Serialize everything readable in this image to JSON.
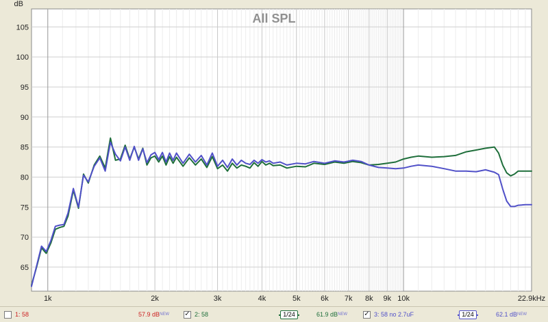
{
  "chart_data": {
    "type": "line",
    "title": "All SPL",
    "ylabel": "dB",
    "xscale": "log",
    "xlim": [
      900,
      22900
    ],
    "ylim": [
      61,
      108
    ],
    "yticks": [
      65,
      70,
      75,
      80,
      85,
      90,
      95,
      100,
      105
    ],
    "xtick_values": [
      1000,
      2000,
      3000,
      4000,
      5000,
      6000,
      7000,
      8000,
      9000,
      10000,
      22900
    ],
    "xtick_labels": [
      "1k",
      "2k",
      "3k",
      "4k",
      "5k",
      "6k",
      "7k",
      "8k",
      "9k",
      "10k",
      "22.9kHz"
    ],
    "grid": true,
    "series": [
      {
        "name": "2: 58",
        "color": "#1e6e3a",
        "x": [
          900,
          930,
          960,
          990,
          1020,
          1050,
          1080,
          1110,
          1140,
          1180,
          1220,
          1260,
          1300,
          1350,
          1400,
          1450,
          1500,
          1550,
          1600,
          1650,
          1700,
          1750,
          1800,
          1850,
          1900,
          1950,
          2000,
          2050,
          2100,
          2150,
          2200,
          2250,
          2300,
          2400,
          2500,
          2600,
          2700,
          2800,
          2900,
          3000,
          3100,
          3200,
          3300,
          3400,
          3500,
          3600,
          3700,
          3800,
          3900,
          4000,
          4100,
          4200,
          4300,
          4500,
          4700,
          5000,
          5300,
          5600,
          6000,
          6400,
          6800,
          7200,
          7600,
          8000,
          8500,
          9000,
          9500,
          10000,
          10500,
          11000,
          12000,
          13000,
          14000,
          15000,
          16000,
          17000,
          18000,
          18500,
          19000,
          19500,
          20000,
          20500,
          21000,
          22000,
          22900
        ],
        "y": [
          62,
          65,
          68.2,
          67.3,
          69,
          71.3,
          71.6,
          71.8,
          73.5,
          77.8,
          74.8,
          80.5,
          79,
          82,
          83.5,
          81.5,
          86.5,
          82.8,
          83,
          85.3,
          83,
          85,
          83,
          84.8,
          82,
          83.2,
          83.5,
          82.5,
          83.5,
          82,
          83.4,
          82.3,
          83.3,
          81.8,
          83.2,
          82,
          83,
          81.6,
          83.4,
          81.4,
          82,
          81,
          82.3,
          81.5,
          82,
          81.8,
          81.5,
          82.4,
          81.8,
          82.6,
          82,
          82.3,
          81.9,
          82,
          81.5,
          81.8,
          81.7,
          82.3,
          82.1,
          82.5,
          82.3,
          82.6,
          82.4,
          82,
          82.1,
          82.3,
          82.5,
          83,
          83.3,
          83.5,
          83.3,
          83.4,
          83.6,
          84.2,
          84.5,
          84.8,
          85,
          84,
          82,
          80.7,
          80.2,
          80.5,
          81,
          81,
          81
        ]
      },
      {
        "name": "3: 58 no 2.7uF",
        "color": "#5050c8",
        "x": [
          900,
          930,
          960,
          990,
          1020,
          1050,
          1080,
          1110,
          1140,
          1180,
          1220,
          1260,
          1300,
          1350,
          1400,
          1450,
          1500,
          1550,
          1600,
          1650,
          1700,
          1750,
          1800,
          1850,
          1900,
          1950,
          2000,
          2050,
          2100,
          2150,
          2200,
          2250,
          2300,
          2400,
          2500,
          2600,
          2700,
          2800,
          2900,
          3000,
          3100,
          3200,
          3300,
          3400,
          3500,
          3600,
          3700,
          3800,
          3900,
          4000,
          4100,
          4200,
          4300,
          4500,
          4700,
          5000,
          5300,
          5600,
          6000,
          6400,
          6800,
          7200,
          7600,
          8000,
          8500,
          9000,
          9500,
          10000,
          10500,
          11000,
          12000,
          13000,
          14000,
          15000,
          16000,
          17000,
          18000,
          18500,
          19000,
          19500,
          20000,
          20500,
          21000,
          22000,
          22900
        ],
        "y": [
          61.8,
          65.2,
          68.5,
          67.6,
          69.4,
          71.8,
          72.0,
          72.1,
          74.0,
          78.1,
          75.0,
          80.3,
          79.2,
          81.8,
          83.2,
          81.0,
          85.8,
          83.8,
          82.7,
          85.0,
          82.8,
          85.1,
          82.8,
          84.7,
          82.4,
          83.7,
          84.1,
          82.9,
          84.1,
          82.5,
          84.0,
          82.8,
          84.0,
          82.3,
          83.8,
          82.5,
          83.6,
          82.0,
          84.0,
          81.8,
          82.8,
          81.6,
          83.0,
          82.0,
          82.8,
          82.3,
          82.1,
          82.8,
          82.3,
          82.9,
          82.5,
          82.7,
          82.3,
          82.5,
          82.0,
          82.3,
          82.2,
          82.6,
          82.3,
          82.7,
          82.5,
          82.8,
          82.6,
          82.0,
          81.6,
          81.5,
          81.4,
          81.5,
          81.8,
          82.0,
          81.8,
          81.4,
          81.0,
          81.0,
          80.9,
          81.2,
          80.8,
          80.4,
          78.0,
          76.0,
          75.1,
          75.1,
          75.3,
          75.4,
          75.4
        ]
      }
    ]
  },
  "legend": {
    "items": [
      {
        "name": "1: 58",
        "value": "57.9 dB",
        "badge": "NEW",
        "checked": false,
        "checkmark": "",
        "name_color": "#cc2222",
        "value_color": "#cc2222"
      },
      {
        "name": "2: 58",
        "value": "61.9 dB",
        "badge": "NEW",
        "checked": true,
        "checkmark": "✓",
        "name_color": "#1e6e3a",
        "value_color": "#1e6e3a",
        "smoothing": "1/24"
      },
      {
        "name": "3: 58 no 2.7uF",
        "value": "62.1 dB",
        "badge": "NEW",
        "checked": true,
        "checkmark": "✓",
        "name_color": "#5050c8",
        "value_color": "#5050c8",
        "smoothing": "1/24"
      }
    ]
  }
}
